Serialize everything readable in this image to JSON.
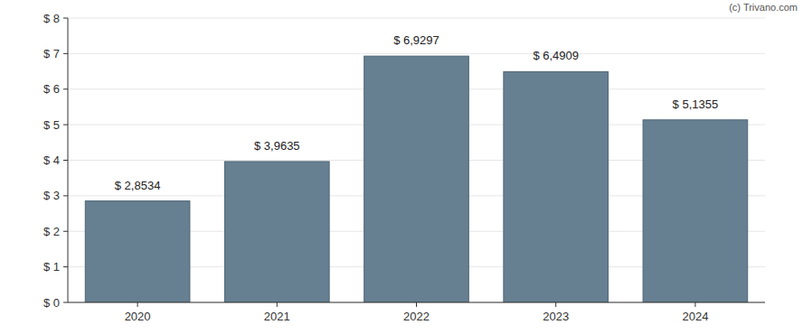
{
  "chart_data": {
    "type": "bar",
    "annotations": [
      "(c) Trivano.com"
    ],
    "categories": [
      "2020",
      "2021",
      "2022",
      "2023",
      "2024"
    ],
    "values": [
      2.8534,
      3.9635,
      6.9297,
      6.4909,
      5.1355
    ],
    "value_labels": [
      "$ 2,8534",
      "$ 3,9635",
      "$ 6,9297",
      "$ 6,4909",
      "$ 5,1355"
    ],
    "data_labels": true,
    "color": "#667f91",
    "ylim": [
      0,
      8
    ],
    "yticks": [
      {
        "value": 0,
        "label": "$ 0"
      },
      {
        "value": 1,
        "label": "$ 1"
      },
      {
        "value": 2,
        "label": "$ 2"
      },
      {
        "value": 3,
        "label": "$ 3"
      },
      {
        "value": 4,
        "label": "$ 4"
      },
      {
        "value": 5,
        "label": "$ 5"
      },
      {
        "value": 6,
        "label": "$ 6"
      },
      {
        "value": 7,
        "label": "$ 7"
      },
      {
        "value": 8,
        "label": "$ 8"
      }
    ],
    "grid": true
  }
}
